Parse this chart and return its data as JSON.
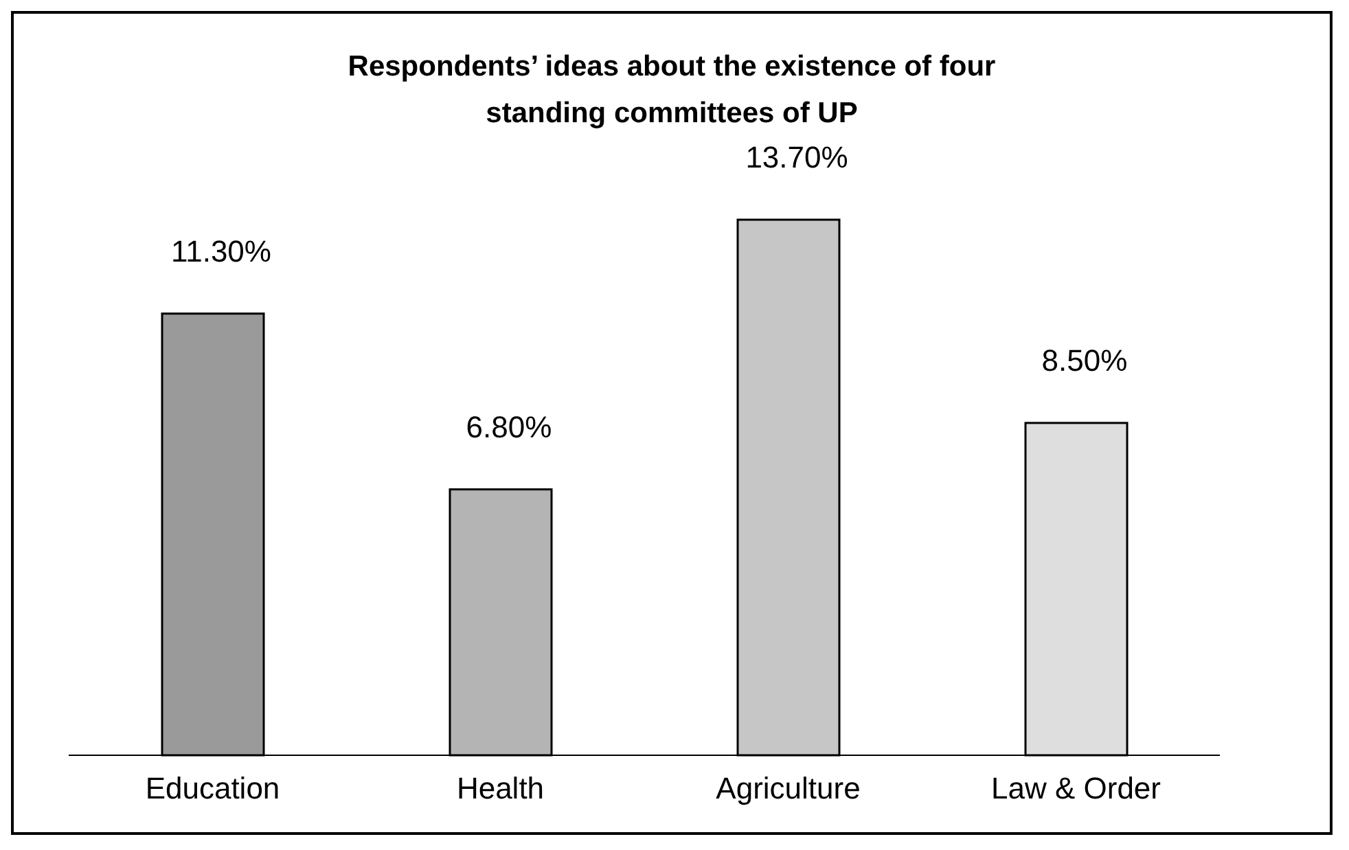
{
  "chart_data": {
    "type": "bar",
    "title": "Respondents’ ideas about the existence of four standing committees of UP",
    "categories": [
      "Education",
      "Health",
      "Agriculture",
      "Law & Order"
    ],
    "values": [
      11.3,
      6.8,
      13.7,
      8.5
    ],
    "value_labels": [
      "11.30%",
      "6.80%",
      "13.70%",
      "8.50%"
    ],
    "colors": [
      "#9a9a9a",
      "#b4b4b4",
      "#c6c6c6",
      "#dedede"
    ],
    "grid": false,
    "legend": false
  }
}
